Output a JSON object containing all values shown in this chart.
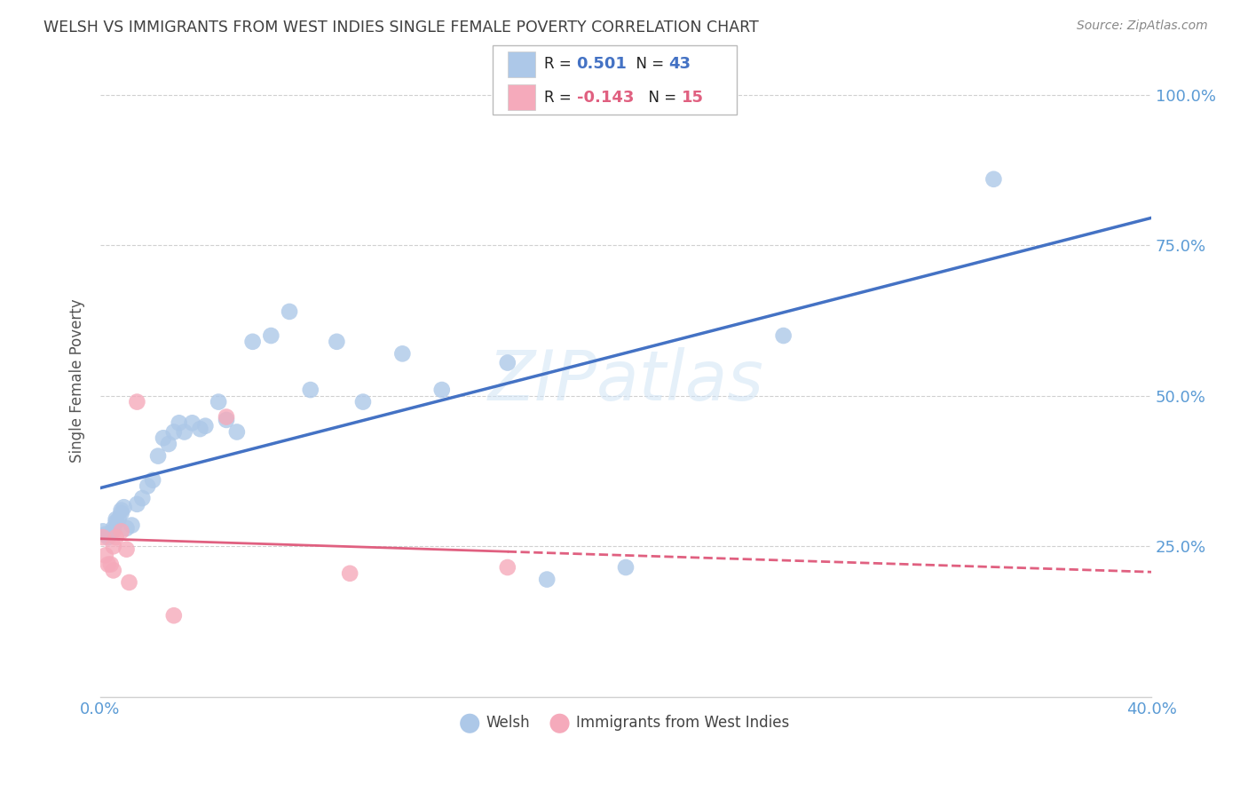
{
  "title": "WELSH VS IMMIGRANTS FROM WEST INDIES SINGLE FEMALE POVERTY CORRELATION CHART",
  "source": "Source: ZipAtlas.com",
  "ylabel": "Single Female Poverty",
  "ytick_labels": [
    "100.0%",
    "75.0%",
    "50.0%",
    "25.0%"
  ],
  "ytick_values": [
    1.0,
    0.75,
    0.5,
    0.25
  ],
  "xlim": [
    0.0,
    0.4
  ],
  "ylim": [
    0.0,
    1.05
  ],
  "watermark": "ZIPatlas",
  "welsh_R": 0.501,
  "welsh_N": 43,
  "westindies_R": -0.143,
  "westindies_N": 15,
  "welsh_color": "#adc8e8",
  "westindies_color": "#f5aabb",
  "welsh_line_color": "#4472c4",
  "westindies_line_color": "#e06080",
  "welsh_x": [
    0.001,
    0.002,
    0.003,
    0.004,
    0.005,
    0.005,
    0.006,
    0.006,
    0.007,
    0.008,
    0.008,
    0.009,
    0.01,
    0.012,
    0.014,
    0.016,
    0.018,
    0.02,
    0.022,
    0.024,
    0.026,
    0.028,
    0.03,
    0.032,
    0.035,
    0.038,
    0.04,
    0.045,
    0.048,
    0.052,
    0.058,
    0.065,
    0.072,
    0.08,
    0.09,
    0.1,
    0.115,
    0.13,
    0.155,
    0.17,
    0.2,
    0.26,
    0.34
  ],
  "welsh_y": [
    0.275,
    0.27,
    0.265,
    0.27,
    0.275,
    0.28,
    0.29,
    0.295,
    0.295,
    0.305,
    0.31,
    0.315,
    0.28,
    0.285,
    0.32,
    0.33,
    0.35,
    0.36,
    0.4,
    0.43,
    0.42,
    0.44,
    0.455,
    0.44,
    0.455,
    0.445,
    0.45,
    0.49,
    0.46,
    0.44,
    0.59,
    0.6,
    0.64,
    0.51,
    0.59,
    0.49,
    0.57,
    0.51,
    0.555,
    0.195,
    0.215,
    0.6,
    0.86
  ],
  "westindies_x": [
    0.001,
    0.002,
    0.003,
    0.004,
    0.005,
    0.005,
    0.006,
    0.008,
    0.01,
    0.011,
    0.014,
    0.028,
    0.048,
    0.095,
    0.155
  ],
  "westindies_y": [
    0.265,
    0.235,
    0.22,
    0.22,
    0.25,
    0.21,
    0.265,
    0.275,
    0.245,
    0.19,
    0.49,
    0.135,
    0.465,
    0.205,
    0.215
  ],
  "background_color": "#ffffff",
  "grid_color": "#d0d0d0",
  "tick_label_color": "#5b9bd5",
  "title_color": "#404040",
  "source_color": "#888888"
}
